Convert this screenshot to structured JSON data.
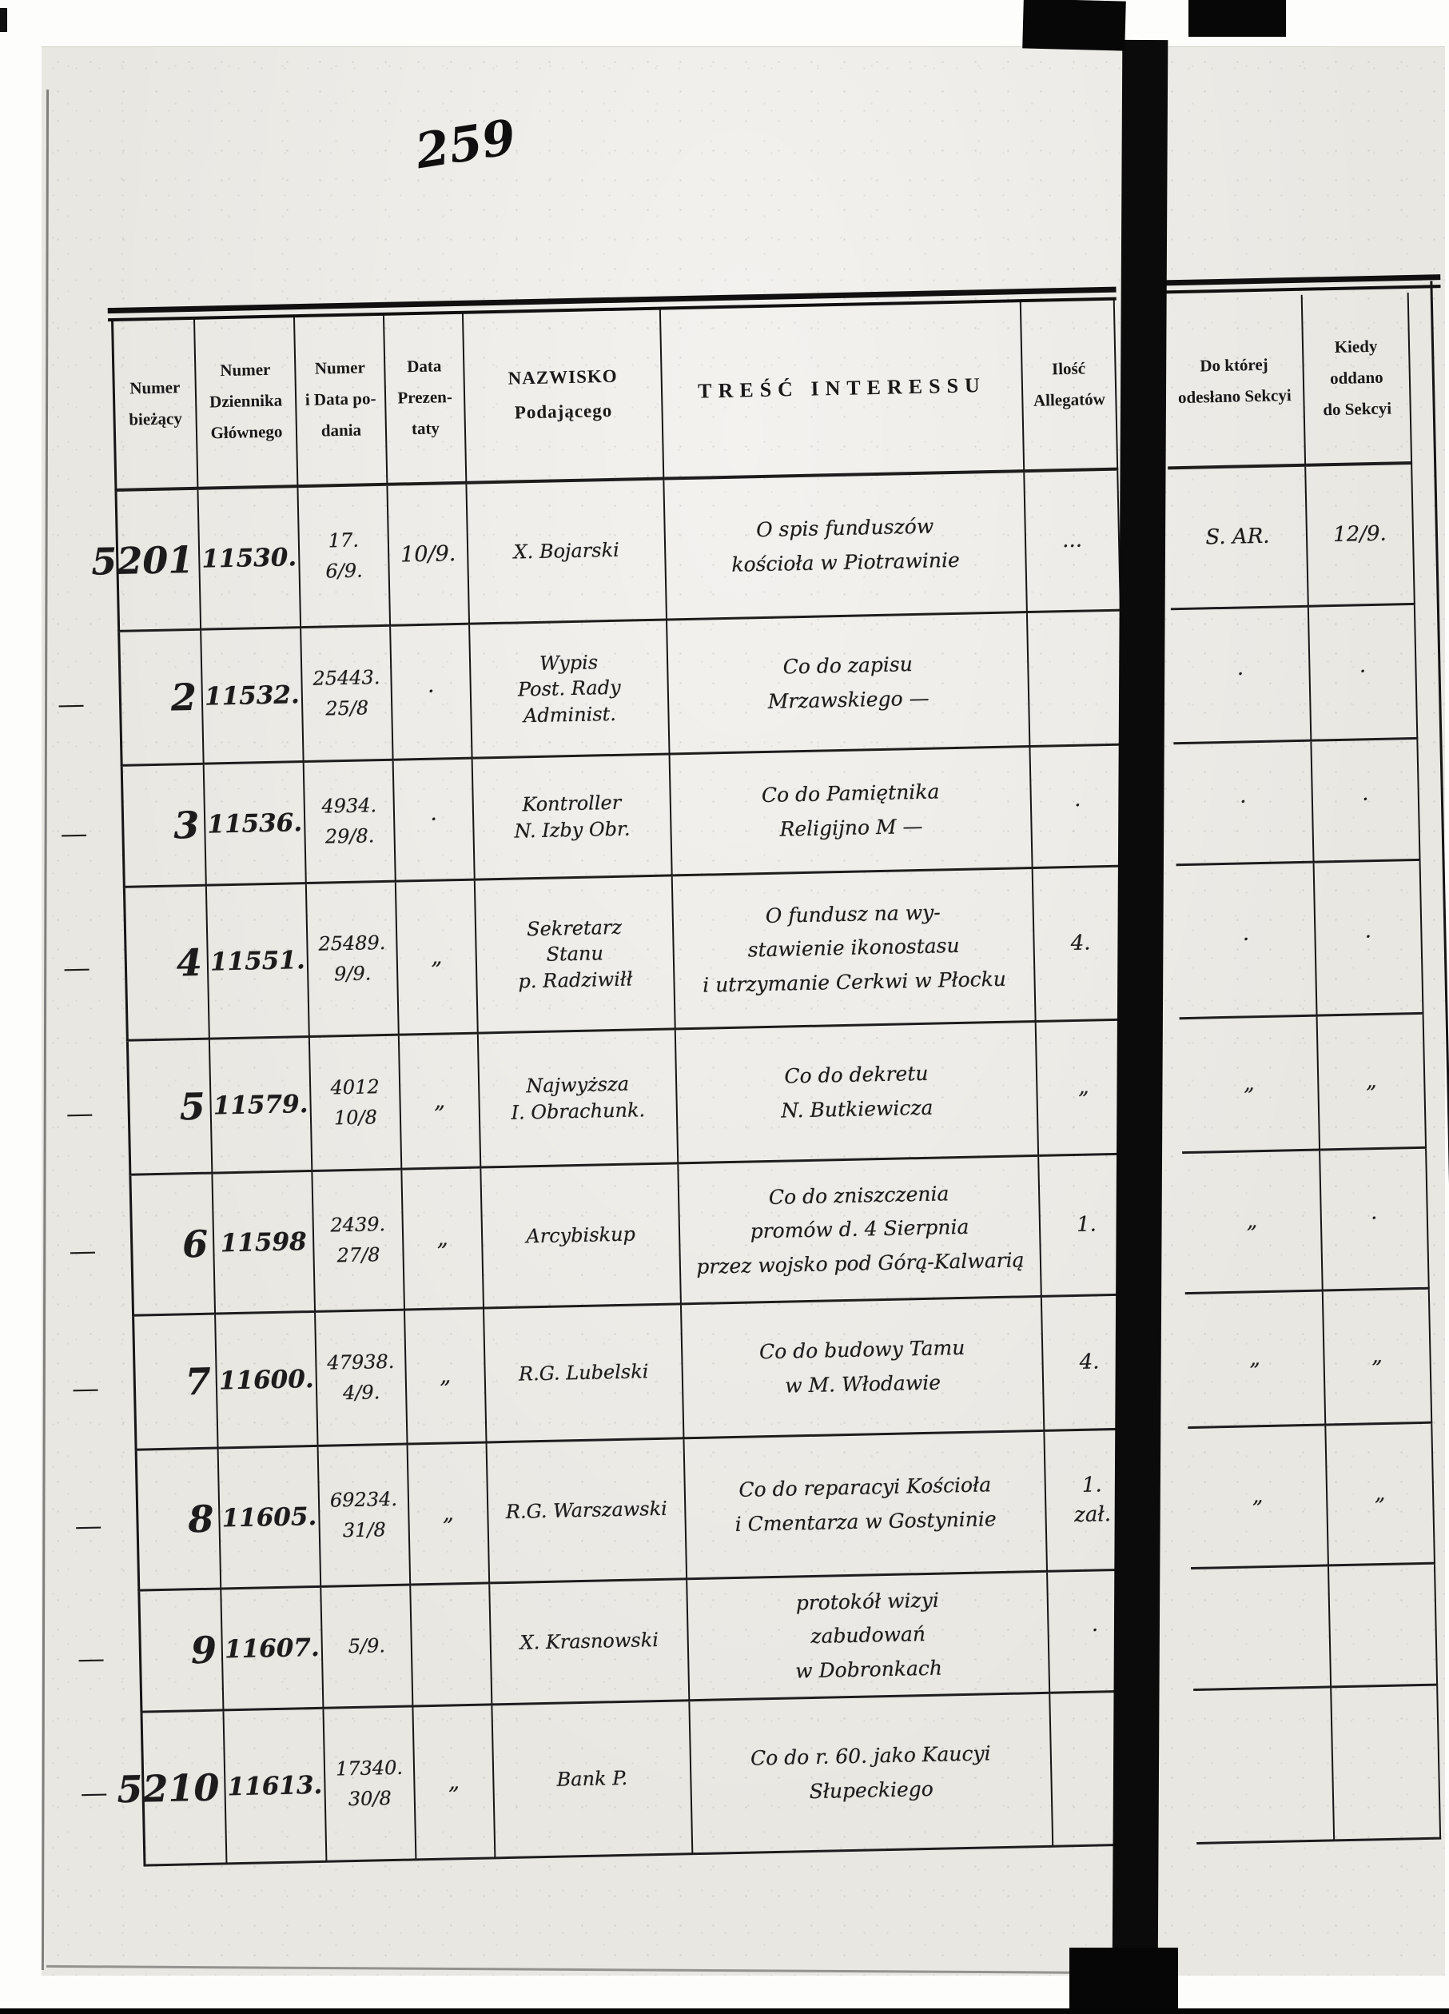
{
  "folio_number": "259",
  "colors": {
    "paper": "#e9e7e2",
    "ink": "#1c1c1c",
    "gutter": "#0b0b0b"
  },
  "table": {
    "columns": [
      {
        "key": "nr",
        "label": "Numer\nbieżący"
      },
      {
        "key": "dziennik",
        "label": "Numer\nDziennika\nGłównego"
      },
      {
        "key": "podanie",
        "label": "Numer\ni Data po-\ndania"
      },
      {
        "key": "prezentata",
        "label": "Data\nPrezen-\ntaty"
      },
      {
        "key": "nazwisko",
        "label": "NAZWISKO\nPodającego"
      },
      {
        "key": "tresc",
        "label": "TREŚĆ INTERESSU"
      },
      {
        "key": "ilosc",
        "label": "Ilość\nAllegatów"
      },
      {
        "key": "sekcya",
        "label": "Do której\nodesłano Sekcyi"
      },
      {
        "key": "kiedy",
        "label": "Kiedy\noddano\ndo Sekcyi"
      }
    ],
    "rows": [
      {
        "margin": "",
        "nr": "5201",
        "dziennik": "11530.",
        "podanie": "17.\n6/9.",
        "prezentata": "10/9.",
        "nazwisko": "X. Bojarski",
        "tresc": "O spis funduszów\nkościoła w Piotrawinie",
        "ilosc": "...",
        "sekcya": "S. AR.",
        "kiedy": "12/9."
      },
      {
        "margin": "—",
        "nr": "2",
        "dziennik": "11532.",
        "podanie": "25443.\n25/8",
        "prezentata": "·",
        "nazwisko": "Wypis\nPost. Rady\nAdminist.",
        "tresc": "Co do zapisu\nMrzawskiego —",
        "ilosc": "",
        "sekcya": "·",
        "kiedy": "·"
      },
      {
        "margin": "—",
        "nr": "3",
        "dziennik": "11536.",
        "podanie": "4934.\n29/8.",
        "prezentata": "·",
        "nazwisko": "Kontroller\nN. Izby Obr.",
        "tresc": "Co do Pamiętnika\nReligijno M —",
        "ilosc": "·",
        "sekcya": "·",
        "kiedy": "·"
      },
      {
        "margin": "—",
        "nr": "4",
        "dziennik": "11551.",
        "podanie": "25489.\n9/9.",
        "prezentata": "„",
        "nazwisko": "Sekretarz\nStanu\np. Radziwiłł",
        "tresc": "O fundusz na wy-\nstawienie ikonostasu\ni utrzymanie Cerkwi w Płocku",
        "ilosc": "4.",
        "sekcya": "·",
        "kiedy": "·"
      },
      {
        "margin": "—",
        "nr": "5",
        "dziennik": "11579.",
        "podanie": "4012\n10/8",
        "prezentata": "„",
        "nazwisko": "Najwyższa\nI. Obrachunk.",
        "tresc": "Co do dekretu\nN. Butkiewicza",
        "ilosc": "„",
        "sekcya": "„",
        "kiedy": "„"
      },
      {
        "margin": "—",
        "nr": "6",
        "dziennik": "11598",
        "podanie": "2439.\n27/8",
        "prezentata": "„",
        "nazwisko": "Arcybiskup",
        "tresc": "Co do zniszczenia\npromów d. 4 Sierpnia\nprzez wojsko pod Górą-Kalwarią",
        "ilosc": "1.",
        "sekcya": "„",
        "kiedy": "·"
      },
      {
        "margin": "—",
        "nr": "7",
        "dziennik": "11600.",
        "podanie": "47938.\n4/9.",
        "prezentata": "„",
        "nazwisko": "R.G. Lubelski",
        "tresc": "Co do budowy Tamu\nw M. Włodawie",
        "ilosc": "4.",
        "sekcya": "„",
        "kiedy": "„"
      },
      {
        "margin": "—",
        "nr": "8",
        "dziennik": "11605.",
        "podanie": "69234.\n31/8",
        "prezentata": "„",
        "nazwisko": "R.G. Warszawski",
        "tresc": "Co do reparacyi Kościoła\ni Cmentarza w Gostyninie",
        "ilosc": "1.\nzał.",
        "sekcya": "„",
        "kiedy": "„"
      },
      {
        "margin": "—",
        "nr": "9",
        "dziennik": "11607.",
        "podanie": "5/9.",
        "prezentata": "",
        "nazwisko": "X. Krasnowski",
        "tresc": "protokół wizyi\nzabudowań\nw Dobronkach",
        "ilosc": "·",
        "sekcya": "",
        "kiedy": ""
      },
      {
        "margin": "—",
        "nr": "5210",
        "dziennik": "11613.",
        "podanie": "17340.\n30/8",
        "prezentata": "„",
        "nazwisko": "Bank P.",
        "tresc": "Co do r. 60. jako Kaucyi\nSłupeckiego",
        "ilosc": "",
        "sekcya": "",
        "kiedy": ""
      }
    ]
  }
}
